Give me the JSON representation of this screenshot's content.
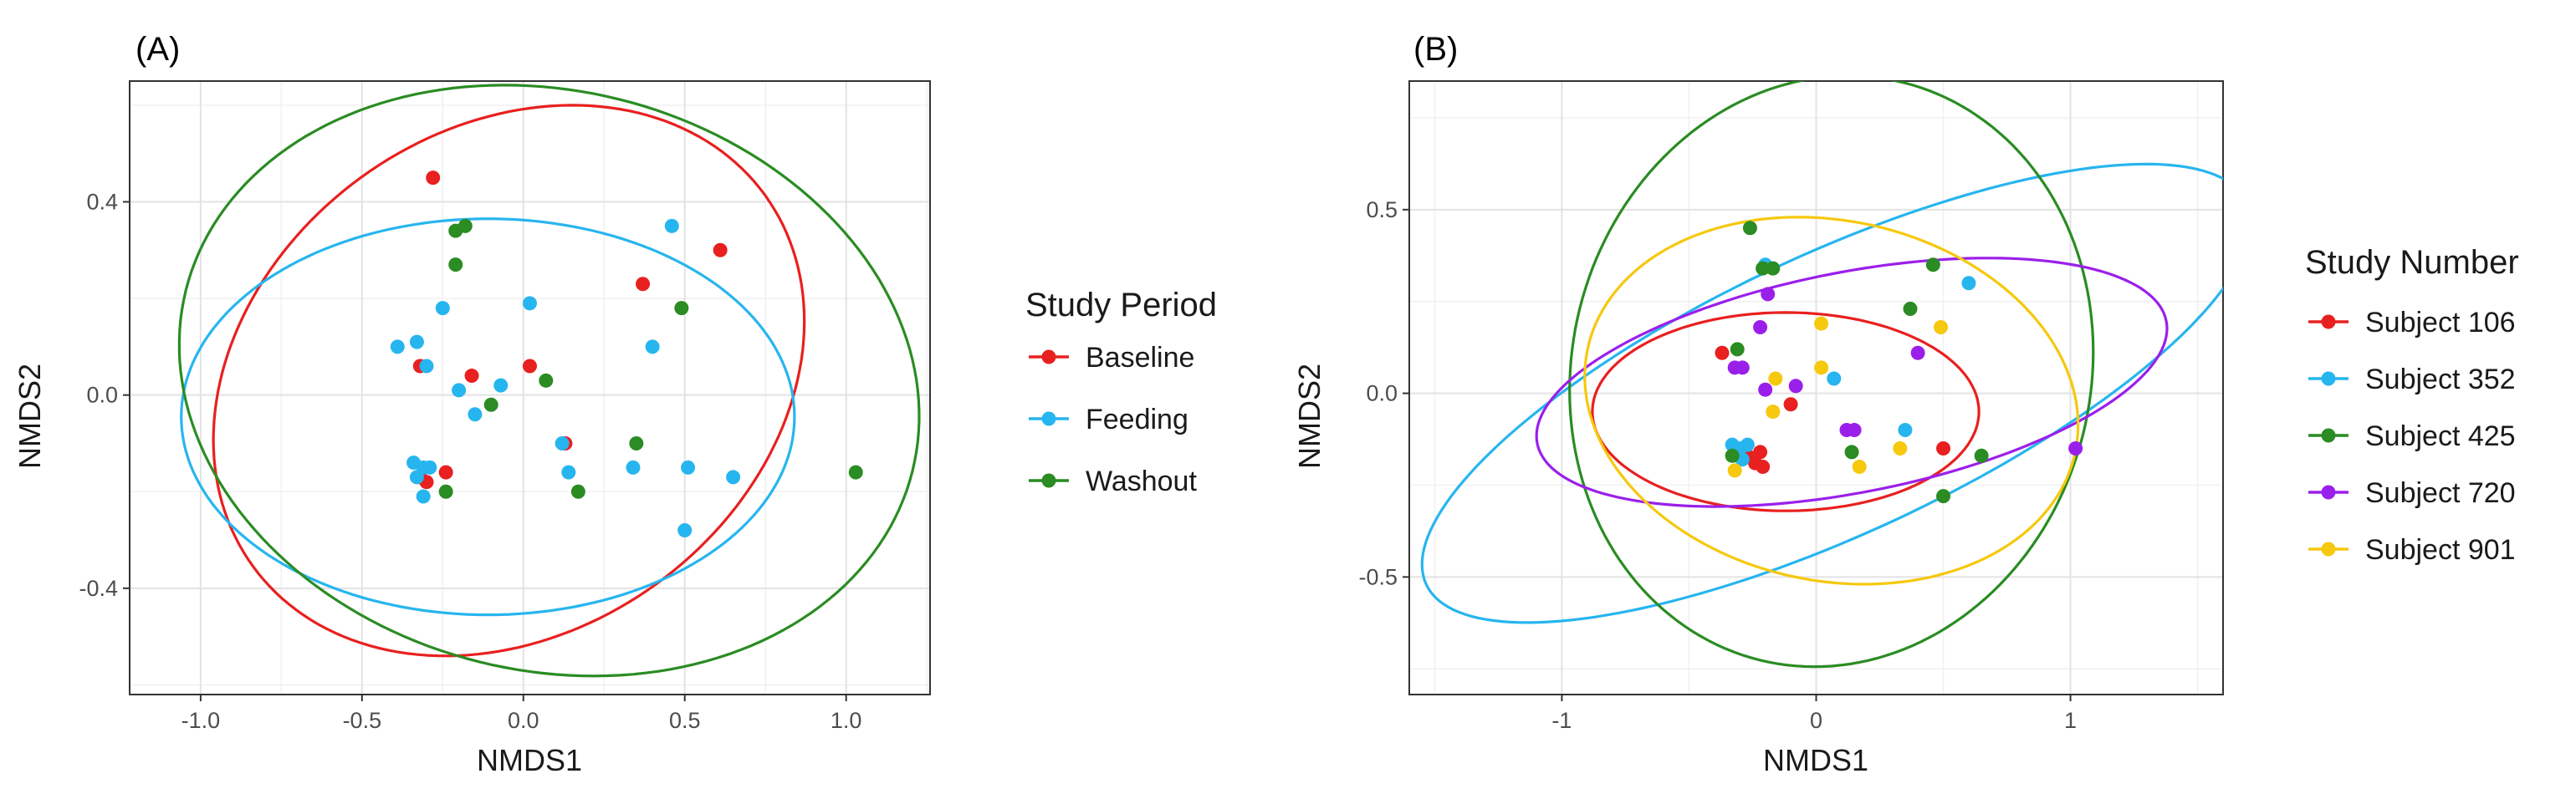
{
  "chart_data": [
    {
      "type": "scatter",
      "panel_label": "(A)",
      "xlabel": "NMDS1",
      "ylabel": "NMDS2",
      "xlim": [
        -1.22,
        1.26
      ],
      "ylim": [
        -0.62,
        0.65
      ],
      "xticks": [
        -1.0,
        -0.5,
        0.0,
        0.5,
        1.0
      ],
      "xtick_labels": [
        "-1.0",
        "-0.5",
        "0.0",
        "0.5",
        "1.0"
      ],
      "yticks": [
        -0.4,
        0.0,
        0.4
      ],
      "ytick_labels": [
        "-0.4",
        "0.0",
        "0.4"
      ],
      "grid": true,
      "legend_title": "Study Period",
      "legend_position": "right",
      "series": [
        {
          "name": "Baseline",
          "color": "#e8201f",
          "points": [
            [
              -0.28,
              0.45
            ],
            [
              0.61,
              0.3
            ],
            [
              0.37,
              0.23
            ],
            [
              -0.32,
              0.06
            ],
            [
              -0.16,
              0.04
            ],
            [
              0.02,
              0.06
            ],
            [
              0.13,
              -0.1
            ],
            [
              -0.24,
              -0.16
            ],
            [
              -0.3,
              -0.18
            ],
            [
              -0.32,
              -0.17
            ]
          ],
          "ellipse": {
            "cx": -0.045,
            "cy": 0.03,
            "rx": 0.98,
            "ry": 0.52,
            "angle": 36
          }
        },
        {
          "name": "Feeding",
          "color": "#27b5ef",
          "points": [
            [
              -0.39,
              0.1
            ],
            [
              -0.33,
              0.11
            ],
            [
              -0.3,
              0.06
            ],
            [
              -0.25,
              0.18
            ],
            [
              0.02,
              0.19
            ],
            [
              0.46,
              0.35
            ],
            [
              0.4,
              0.1
            ],
            [
              -0.2,
              0.01
            ],
            [
              -0.15,
              -0.04
            ],
            [
              -0.07,
              0.02
            ],
            [
              0.12,
              -0.1
            ],
            [
              0.14,
              -0.16
            ],
            [
              0.34,
              -0.15
            ],
            [
              0.51,
              -0.15
            ],
            [
              0.65,
              -0.17
            ],
            [
              0.5,
              -0.28
            ],
            [
              -0.34,
              -0.14
            ],
            [
              -0.31,
              -0.15
            ],
            [
              -0.29,
              -0.15
            ],
            [
              -0.33,
              -0.17
            ],
            [
              -0.31,
              -0.21
            ]
          ],
          "ellipse": {
            "cx": -0.11,
            "cy": -0.045,
            "rx": 0.95,
            "ry": 0.41,
            "angle": 0
          }
        },
        {
          "name": "Washout",
          "color": "#2a8c23",
          "points": [
            [
              -0.21,
              0.34
            ],
            [
              -0.18,
              0.35
            ],
            [
              -0.21,
              0.27
            ],
            [
              0.49,
              0.18
            ],
            [
              0.07,
              0.03
            ],
            [
              -0.1,
              -0.02
            ],
            [
              0.35,
              -0.1
            ],
            [
              0.17,
              -0.2
            ],
            [
              -0.24,
              -0.2
            ],
            [
              1.03,
              -0.16
            ]
          ],
          "ellipse": {
            "cx": 0.08,
            "cy": 0.03,
            "rx": 1.16,
            "ry": 0.6,
            "angle": -14
          }
        }
      ]
    },
    {
      "type": "scatter",
      "panel_label": "(B)",
      "xlabel": "NMDS1",
      "ylabel": "NMDS2",
      "xlim": [
        -1.6,
        1.6
      ],
      "ylim": [
        -0.82,
        0.85
      ],
      "xticks": [
        -1,
        0,
        1
      ],
      "xtick_labels": [
        "-1",
        "0",
        "1"
      ],
      "yticks": [
        -0.5,
        0.0,
        0.5
      ],
      "ytick_labels": [
        "-0.5",
        "0.0",
        "0.5"
      ],
      "grid": true,
      "legend_title": "Study Number",
      "legend_position": "right",
      "series": [
        {
          "name": "Subject 106",
          "color": "#e8201f",
          "points": [
            [
              -0.37,
              0.11
            ],
            [
              -0.1,
              -0.03
            ],
            [
              0.5,
              -0.15
            ],
            [
              -0.31,
              -0.16
            ],
            [
              -0.27,
              -0.17
            ],
            [
              -0.22,
              -0.16
            ],
            [
              -0.24,
              -0.19
            ],
            [
              -0.21,
              -0.2
            ]
          ],
          "ellipse": {
            "cx": -0.12,
            "cy": -0.05,
            "rx": 0.76,
            "ry": 0.27,
            "angle": 0
          }
        },
        {
          "name": "Subject 352",
          "color": "#27b5ef",
          "points": [
            [
              -0.2,
              0.35
            ],
            [
              0.6,
              0.3
            ],
            [
              0.07,
              0.04
            ],
            [
              0.35,
              -0.1
            ],
            [
              -0.33,
              -0.14
            ],
            [
              -0.3,
              -0.15
            ],
            [
              -0.27,
              -0.14
            ],
            [
              -0.31,
              -0.17
            ],
            [
              -0.29,
              -0.18
            ]
          ],
          "ellipse": {
            "cx": 0.08,
            "cy": 0.0,
            "rx": 1.78,
            "ry": 0.38,
            "angle": 25
          }
        },
        {
          "name": "Subject 425",
          "color": "#2a8c23",
          "points": [
            [
              -0.26,
              0.45
            ],
            [
              -0.21,
              0.34
            ],
            [
              -0.17,
              0.34
            ],
            [
              0.46,
              0.35
            ],
            [
              0.37,
              0.23
            ],
            [
              -0.31,
              0.12
            ],
            [
              0.14,
              -0.16
            ],
            [
              0.65,
              -0.17
            ],
            [
              0.5,
              -0.28
            ],
            [
              -0.33,
              -0.17
            ]
          ],
          "ellipse": {
            "cx": 0.06,
            "cy": 0.06,
            "rx": 1.02,
            "ry": 0.81,
            "angle": -14
          }
        },
        {
          "name": "Subject 720",
          "color": "#9b1fea",
          "points": [
            [
              -0.19,
              0.27
            ],
            [
              -0.22,
              0.18
            ],
            [
              -0.29,
              0.07
            ],
            [
              -0.32,
              0.07
            ],
            [
              0.4,
              0.11
            ],
            [
              -0.2,
              0.01
            ],
            [
              -0.08,
              0.02
            ],
            [
              0.12,
              -0.1
            ],
            [
              0.15,
              -0.1
            ],
            [
              1.02,
              -0.15
            ]
          ],
          "ellipse": {
            "cx": 0.14,
            "cy": 0.03,
            "rx": 1.26,
            "ry": 0.3,
            "angle": 11
          }
        },
        {
          "name": "Subject 901",
          "color": "#f6c80e",
          "points": [
            [
              0.02,
              0.19
            ],
            [
              0.49,
              0.18
            ],
            [
              0.02,
              0.07
            ],
            [
              -0.16,
              0.04
            ],
            [
              -0.17,
              -0.05
            ],
            [
              0.33,
              -0.15
            ],
            [
              0.17,
              -0.2
            ],
            [
              -0.32,
              -0.21
            ]
          ],
          "ellipse": {
            "cx": 0.06,
            "cy": -0.02,
            "rx": 0.98,
            "ry": 0.49,
            "angle": -12
          }
        }
      ]
    }
  ]
}
